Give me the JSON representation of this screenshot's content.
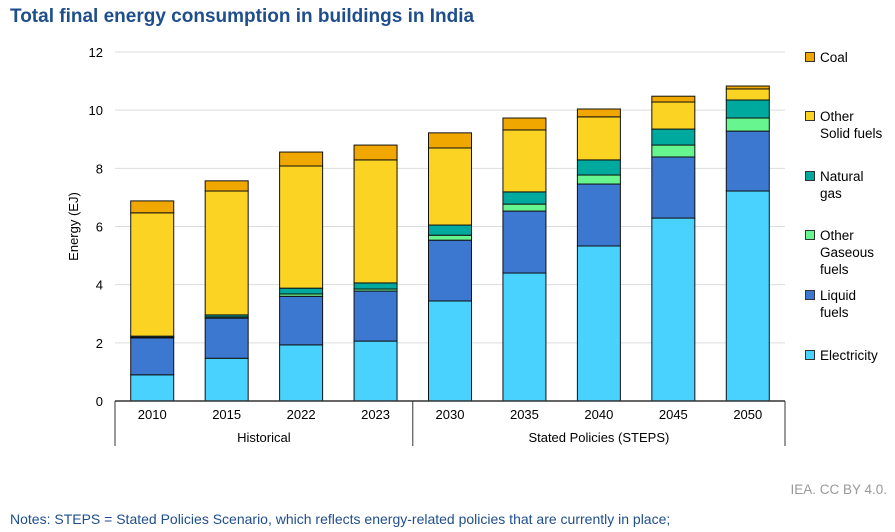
{
  "title": "Total final energy consumption in buildings in India",
  "credit": "IEA. CC BY 4.0.",
  "notes": "Notes: STEPS = Stated Policies Scenario, which reflects energy-related policies that are currently in place;",
  "chart_data": {
    "type": "bar",
    "stacked": true,
    "title": "Total final energy consumption in buildings in India",
    "ylabel": "Energy (EJ)",
    "xlabel": "",
    "ylim": [
      0,
      12
    ],
    "yticks": [
      0,
      2,
      4,
      6,
      8,
      10,
      12
    ],
    "grid": true,
    "legend_position": "right",
    "categories": [
      "2010",
      "2015",
      "2022",
      "2023",
      "2030",
      "2035",
      "2040",
      "2045",
      "2050"
    ],
    "groups": [
      {
        "label": "Historical",
        "categories": [
          "2010",
          "2015",
          "2022",
          "2023"
        ]
      },
      {
        "label": "Stated Policies (STEPS)",
        "categories": [
          "2030",
          "2035",
          "2040",
          "2045",
          "2050"
        ]
      }
    ],
    "series": [
      {
        "name": "Electricity",
        "color": "#4AD2FF",
        "values": [
          0.9,
          1.47,
          1.93,
          2.06,
          3.44,
          4.4,
          5.33,
          6.29,
          7.22
        ]
      },
      {
        "name": "Liquid fuels",
        "color": "#3C78D0",
        "values": [
          1.27,
          1.38,
          1.67,
          1.72,
          2.09,
          2.13,
          2.13,
          2.1,
          2.06
        ]
      },
      {
        "name": "Other Gaseous fuels",
        "color": "#67F590",
        "values": [
          0.02,
          0.04,
          0.08,
          0.07,
          0.17,
          0.24,
          0.31,
          0.41,
          0.45
        ]
      },
      {
        "name": "Natural gas",
        "color": "#00A99D",
        "values": [
          0.04,
          0.07,
          0.2,
          0.21,
          0.35,
          0.42,
          0.52,
          0.55,
          0.62
        ]
      },
      {
        "name": "Other Solid fuels",
        "color": "#FBD322",
        "values": [
          4.24,
          4.26,
          4.2,
          4.23,
          2.65,
          2.13,
          1.48,
          0.93,
          0.38
        ]
      },
      {
        "name": "Coal",
        "color": "#F0A800",
        "values": [
          0.41,
          0.35,
          0.48,
          0.51,
          0.52,
          0.41,
          0.27,
          0.2,
          0.1
        ]
      }
    ],
    "legend": [
      "Coal",
      "Other\nSolid fuels",
      "Natural\ngas",
      "Other\nGaseous\nfuels",
      "Liquid\nfuels",
      "Electricity"
    ]
  }
}
